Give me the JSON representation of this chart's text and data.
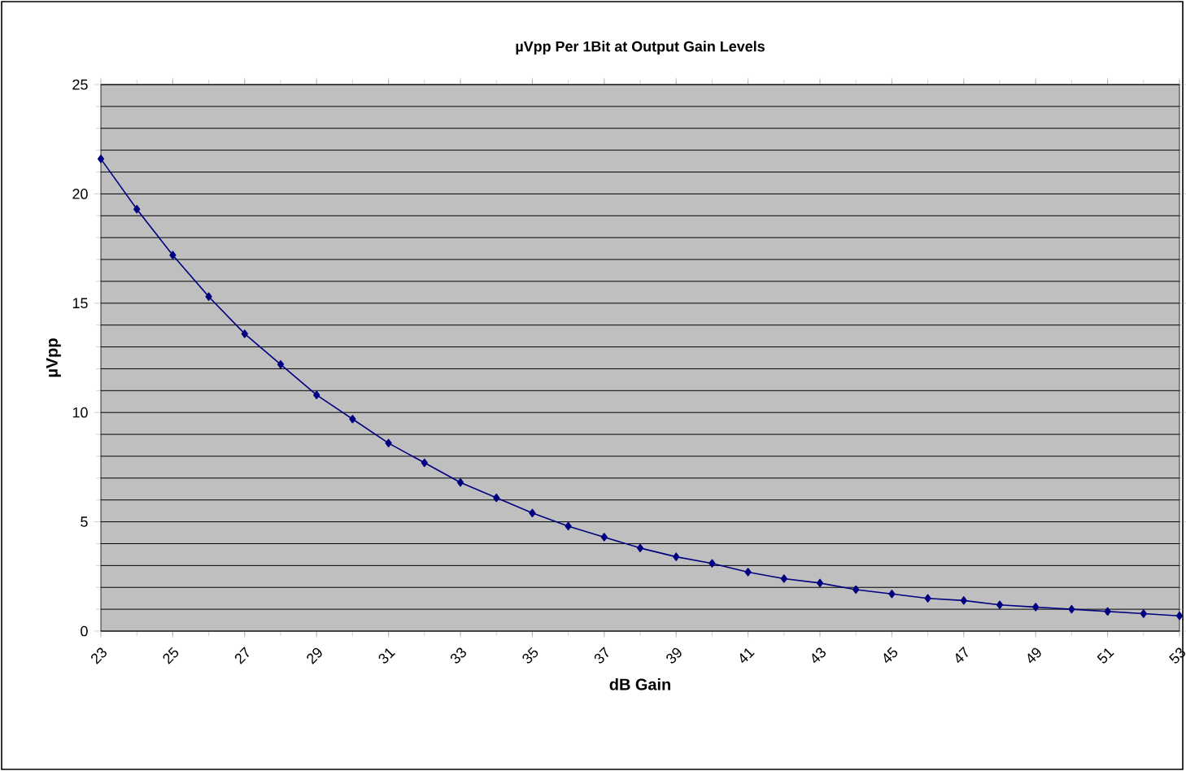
{
  "chart_data": {
    "type": "line",
    "title": "µVpp Per 1Bit at Output Gain Levels",
    "xlabel": "dB Gain",
    "ylabel": "µVpp",
    "categories": [
      "23",
      null,
      "25",
      null,
      "27",
      null,
      "29",
      null,
      "31",
      null,
      "33",
      null,
      "35",
      null,
      "37",
      null,
      "39",
      null,
      "41",
      null,
      "43",
      null,
      "45",
      null,
      "47",
      null,
      "49",
      null,
      "51",
      null,
      "53"
    ],
    "series": [
      {
        "color": "#000080",
        "values": [
          21.6,
          19.3,
          17.2,
          15.3,
          13.6,
          12.2,
          10.8,
          9.7,
          8.6,
          7.7,
          6.8,
          6.1,
          5.4,
          4.8,
          4.3,
          3.8,
          3.4,
          3.1,
          2.7,
          2.4,
          2.2,
          1.9,
          1.7,
          1.5,
          1.4,
          1.2,
          1.1,
          1.0,
          0.9,
          0.8,
          0.7
        ]
      }
    ],
    "ylim": [
      0,
      25
    ],
    "yticks": [
      0,
      5,
      10,
      15,
      20,
      25
    ],
    "grid": "y",
    "marker": "diamond",
    "line_style": "solid"
  }
}
